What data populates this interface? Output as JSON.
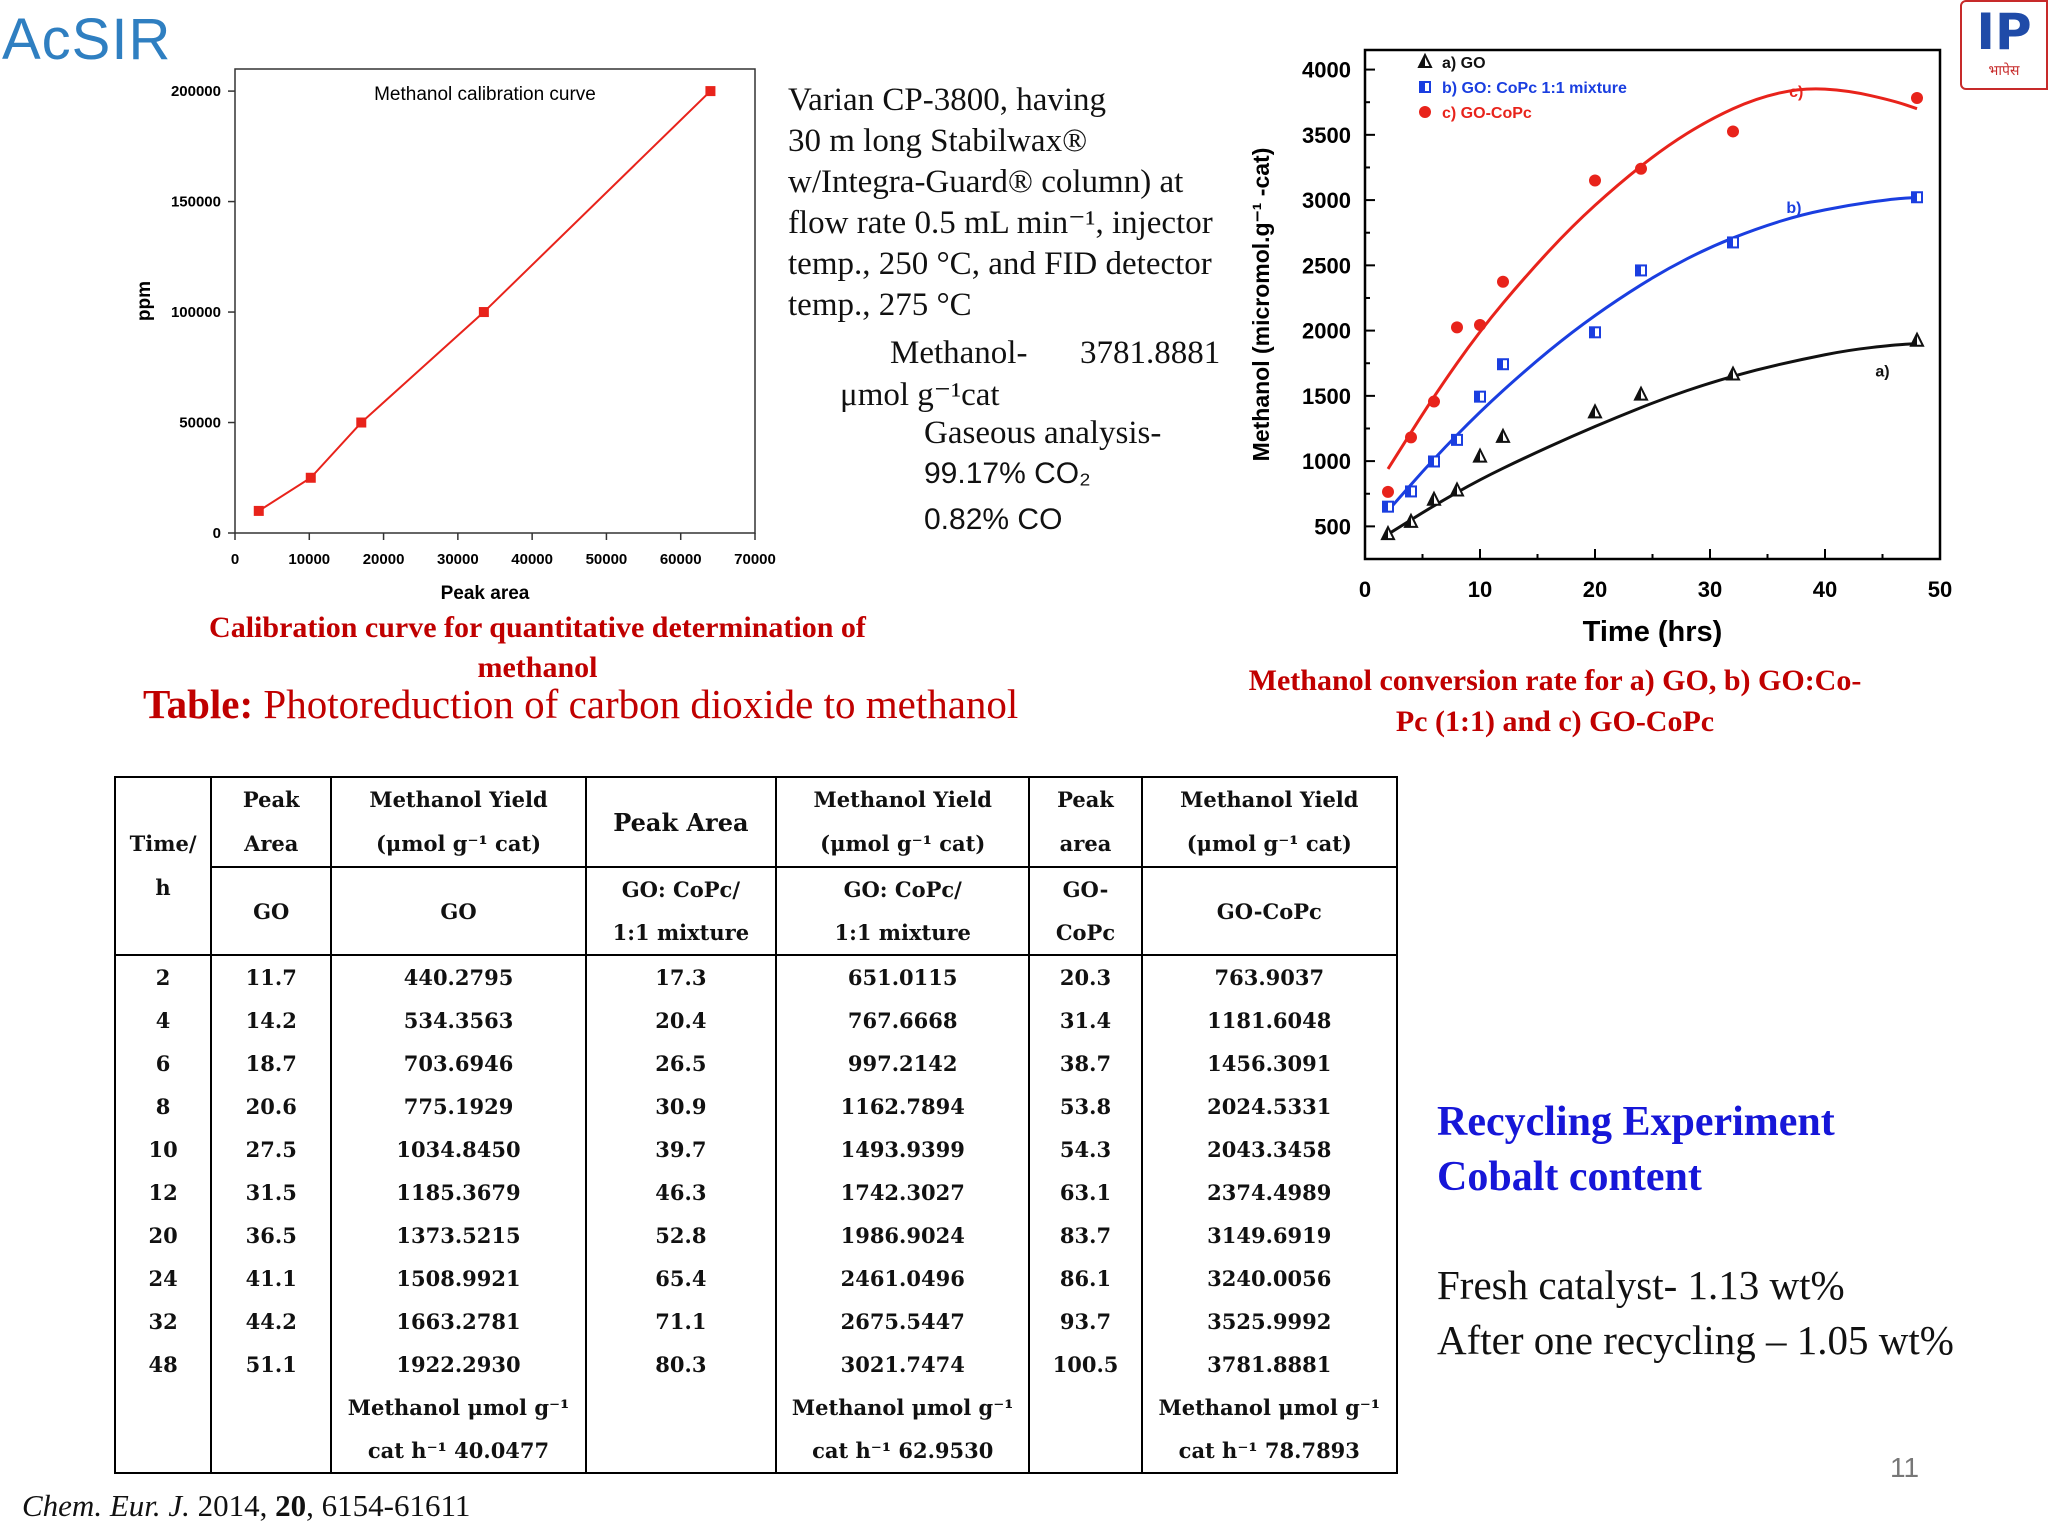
{
  "logos": {
    "left": "AcSIR",
    "right_glyph": "IP",
    "right_text": "भापेस"
  },
  "calibration_caption": [
    "Calibration curve for quantitative determination of",
    "methanol"
  ],
  "conversion_caption": [
    "Methanol conversion rate for a) GO, b) GO:Co-",
    "Pc (1:1) and c) GO-CoPc"
  ],
  "description": {
    "lines": [
      "Varian CP-3800, having",
      "30 m long Stabilwax®",
      "w/Integra-Guard® column) at",
      "flow rate 0.5 mL min⁻¹, injector",
      "temp., 250 °C, and FID detector",
      "temp., 275 °C"
    ],
    "methanol_label": "Methanol-",
    "methanol_value": "3781.8881",
    "methanol_unit": "μmol g⁻¹cat",
    "gaseous": "Gaseous analysis-",
    "co2": "99.17% CO₂",
    "co": "0.82% CO"
  },
  "table_title": {
    "bold": "Table:",
    "rest": "Photoreduction of carbon dioxide to methanol"
  },
  "table": {
    "header_time": [
      "Time/",
      "h"
    ],
    "headers_top": [
      [
        "Peak",
        "Area"
      ],
      [
        "Methanol Yield",
        "(μmol g⁻¹ cat)"
      ],
      [
        "Peak Area"
      ],
      [
        "Methanol Yield",
        "(μmol  g⁻¹ cat)"
      ],
      [
        "Peak",
        "area"
      ],
      [
        "Methanol Yield",
        "(μmol g⁻¹ cat)"
      ]
    ],
    "headers_sub": [
      [
        "GO"
      ],
      [
        "GO"
      ],
      [
        "GO: CoPc/",
        "1:1 mixture"
      ],
      [
        "GO: CoPc/",
        "1:1 mixture"
      ],
      [
        "GO-",
        "CoPc"
      ],
      [
        "GO-CoPc"
      ]
    ],
    "rows": [
      [
        "2",
        "11.7",
        "440.2795",
        "17.3",
        "651.0115",
        "20.3",
        "763.9037"
      ],
      [
        "4",
        "14.2",
        "534.3563",
        "20.4",
        "767.6668",
        "31.4",
        "1181.6048"
      ],
      [
        "6",
        "18.7",
        "703.6946",
        "26.5",
        "997.2142",
        "38.7",
        "1456.3091"
      ],
      [
        "8",
        "20.6",
        "775.1929",
        "30.9",
        "1162.7894",
        "53.8",
        "2024.5331"
      ],
      [
        "10",
        "27.5",
        "1034.8450",
        "39.7",
        "1493.9399",
        "54.3",
        "2043.3458"
      ],
      [
        "12",
        "31.5",
        "1185.3679",
        "46.3",
        "1742.3027",
        "63.1",
        "2374.4989"
      ],
      [
        "20",
        "36.5",
        "1373.5215",
        "52.8",
        "1986.9024",
        "83.7",
        "3149.6919"
      ],
      [
        "24",
        "41.1",
        "1508.9921",
        "65.4",
        "2461.0496",
        "86.1",
        "3240.0056"
      ],
      [
        "32",
        "44.2",
        "1663.2781",
        "71.1",
        "2675.5447",
        "93.7",
        "3525.9992"
      ],
      [
        "48",
        "51.1",
        "1922.2930",
        "80.3",
        "3021.7474",
        "100.5",
        "3781.8881"
      ]
    ],
    "footer": [
      [
        "Methanol μmol g⁻¹",
        "cat h⁻¹ 40.0477"
      ],
      [
        "Methanol μmol g⁻¹",
        "cat h⁻¹ 62.9530"
      ],
      [
        "Methanol μmol g⁻¹",
        "cat h⁻¹  78.7893"
      ]
    ]
  },
  "recycling": {
    "title": [
      "Recycling Experiment",
      "Cobalt content"
    ],
    "fresh": "Fresh catalyst- 1.13 wt%",
    "after": "After one recycling – 1.05 wt%"
  },
  "page_number": "11",
  "citation": {
    "journal": "Chem. Eur. J.",
    "year": "2014,",
    "volume": "20",
    "pages": ", 6154-61611"
  },
  "chart_data": [
    {
      "type": "line",
      "title": "Methanol calibration curve",
      "xlabel": "Peak area",
      "ylabel": "ppm",
      "xlim": [
        0,
        70000
      ],
      "ylim": [
        0,
        210000
      ],
      "x_ticks": [
        0,
        10000,
        20000,
        30000,
        40000,
        50000,
        60000,
        70000
      ],
      "y_ticks": [
        0,
        50000,
        100000,
        150000,
        200000
      ],
      "x_tick_labels": [
        "0",
        "10000",
        "20000",
        "30000",
        "40000",
        "50000",
        "60000",
        "70000"
      ],
      "y_tick_labels": [
        "0",
        "50000",
        "100000",
        "150000",
        "200000"
      ],
      "series": [
        {
          "x": [
            3200,
            10200,
            17000,
            33500,
            64000
          ],
          "y": [
            10000,
            25000,
            50000,
            100000,
            200000
          ],
          "color": "#e8231b"
        }
      ],
      "grid": false
    },
    {
      "type": "scatter",
      "xlabel": "Time (hrs)",
      "ylabel": "Methanol (micromol.g⁻¹ -cat)",
      "xlim": [
        0,
        50
      ],
      "ylim": [
        250,
        4150
      ],
      "x_ticks": [
        0,
        10,
        20,
        30,
        40,
        50
      ],
      "y_ticks": [
        500,
        1000,
        1500,
        2000,
        2500,
        3000,
        3500,
        4000
      ],
      "x_tick_labels": [
        "0",
        "10",
        "20",
        "30",
        "40",
        "50"
      ],
      "y_tick_labels": [
        "500",
        "1000",
        "1500",
        "2000",
        "2500",
        "3000",
        "3500",
        "4000"
      ],
      "legend_position": "top-left",
      "series": [
        {
          "name": "a) GO",
          "label": "a)",
          "color": "#111111",
          "marker": "triangle",
          "x": [
            2,
            4,
            6,
            8,
            10,
            12,
            20,
            24,
            32,
            48
          ],
          "y": [
            440.2795,
            534.3563,
            703.6946,
            775.1929,
            1034.845,
            1185.3679,
            1373.5215,
            1508.9921,
            1663.2781,
            1922.293
          ],
          "fit_x": [
            2,
            6,
            10,
            14,
            18,
            22,
            26,
            30,
            34,
            38,
            42,
            46,
            48
          ],
          "fit_y": [
            440,
            660,
            860,
            1030,
            1190,
            1340,
            1480,
            1600,
            1700,
            1780,
            1850,
            1890,
            1900
          ]
        },
        {
          "name": "b) GO: CoPc 1:1 mixture",
          "label": "b)",
          "color": "#1a3ee0",
          "marker": "square",
          "x": [
            2,
            4,
            6,
            8,
            10,
            12,
            20,
            24,
            32,
            48
          ],
          "y": [
            651.0115,
            767.6668,
            997.2142,
            1162.7894,
            1493.9399,
            1742.3027,
            1986.9024,
            2461.0496,
            2675.5447,
            3021.7474
          ],
          "fit_x": [
            2,
            6,
            10,
            14,
            18,
            22,
            26,
            30,
            34,
            38,
            42,
            46,
            48
          ],
          "fit_y": [
            620,
            1020,
            1380,
            1700,
            1990,
            2240,
            2460,
            2640,
            2780,
            2890,
            2960,
            3010,
            3020
          ]
        },
        {
          "name": "c) GO-CoPc",
          "label": "c)",
          "color": "#e8231b",
          "marker": "circle",
          "x": [
            2,
            4,
            6,
            8,
            10,
            12,
            20,
            24,
            32,
            48
          ],
          "y": [
            763.9037,
            1181.6048,
            1456.3091,
            2024.5331,
            2043.3458,
            2374.4989,
            3149.6919,
            3240.0056,
            3525.9992,
            3781.8881
          ],
          "fit_x": [
            2,
            6,
            10,
            14,
            18,
            22,
            26,
            30,
            34,
            38,
            42,
            46,
            48
          ],
          "fit_y": [
            940,
            1500,
            2000,
            2420,
            2800,
            3120,
            3400,
            3620,
            3780,
            3860,
            3840,
            3760,
            3700
          ]
        }
      ],
      "grid": false
    }
  ]
}
